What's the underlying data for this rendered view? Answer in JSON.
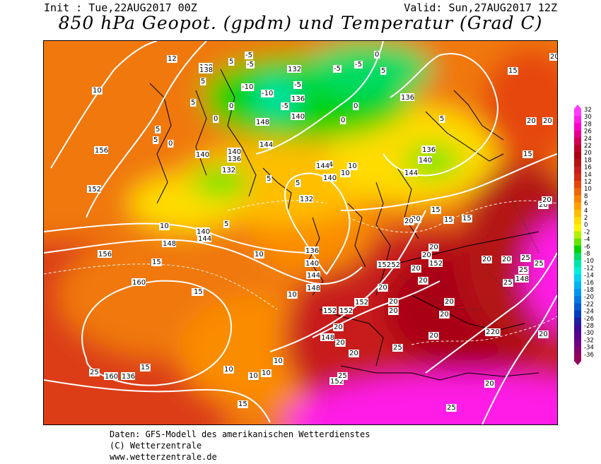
{
  "header": {
    "init": "Init : Tue,22AUG2017 00Z",
    "valid": "Valid: Sun,27AUG2017 12Z",
    "title": "850 hPa Geopot. (gpdm) und Temperatur (Grad C)"
  },
  "legend": {
    "labels": [
      "32",
      "30",
      "28",
      "26",
      "24",
      "22",
      "20",
      "18",
      "16",
      "14",
      "12",
      "10",
      "8",
      "6",
      "4",
      "2",
      "0",
      "-2",
      "-4",
      "-6",
      "-8",
      "-10",
      "-12",
      "-14",
      "-16",
      "-18",
      "-20",
      "-22",
      "-24",
      "-26",
      "-28",
      "-30",
      "-32",
      "-34",
      "-36"
    ],
    "colors": [
      "#ff3cff",
      "#ff1ee6",
      "#ff00c8",
      "#e6008c",
      "#d20050",
      "#be0028",
      "#aa0014",
      "#b41414",
      "#c81e1e",
      "#d22d14",
      "#e6460a",
      "#f0640a",
      "#fa8200",
      "#ffa000",
      "#ffbe00",
      "#ffdc00",
      "#fff000",
      "#b4f000",
      "#64e600",
      "#00d200",
      "#00dc64",
      "#00e6aa",
      "#00f0dc",
      "#00d2f0",
      "#00b4f0",
      "#0096f0",
      "#0078e6",
      "#005ad2",
      "#003cbe",
      "#1e1ea0",
      "#3c0a96",
      "#5a008c",
      "#6e0082",
      "#82006e",
      "#96005a"
    ]
  },
  "map": {
    "geopotential_labels": [
      "138",
      "132",
      "136",
      "140",
      "148",
      "144",
      "140",
      "136",
      "132",
      "144",
      "140",
      "136",
      "132",
      "138",
      "136",
      "140",
      "144",
      "156",
      "152",
      "140",
      "148",
      "144",
      "156",
      "160",
      "160",
      "136",
      "140",
      "144",
      "148",
      "152",
      "152",
      "152",
      "152",
      "148",
      "152",
      "152",
      "152",
      "148",
      "136",
      "144",
      "140"
    ],
    "temperature_labels": [
      "12",
      "5",
      "5",
      "5",
      "5",
      "10",
      "0",
      "5",
      "-5",
      "-5",
      "-5",
      "-5",
      "-10",
      "-10",
      "-5",
      "-5",
      "0",
      "0",
      "0",
      "0",
      "0",
      "5",
      "5",
      "5",
      "5",
      "5",
      "10",
      "10",
      "10",
      "10",
      "15",
      "15",
      "15",
      "15",
      "15",
      "15",
      "20",
      "20",
      "20",
      "20",
      "20",
      "20",
      "20",
      "20",
      "20",
      "20",
      "20",
      "20",
      "20",
      "20",
      "25",
      "25",
      "25",
      "25",
      "25",
      "25",
      "25",
      "20",
      "15",
      "10",
      "10",
      "10",
      "10",
      "15",
      "15",
      "15",
      "20",
      "20",
      "20",
      "20",
      "20",
      "20",
      "20",
      "25",
      "20",
      "20",
      "20",
      "20",
      "10"
    ]
  },
  "footer": {
    "line1": "Daten: GFS-Modell des amerikanischen Wetterdienstes",
    "line2": "(C) Wetterzentrale",
    "line3": "www.wetterzentrale.de"
  }
}
